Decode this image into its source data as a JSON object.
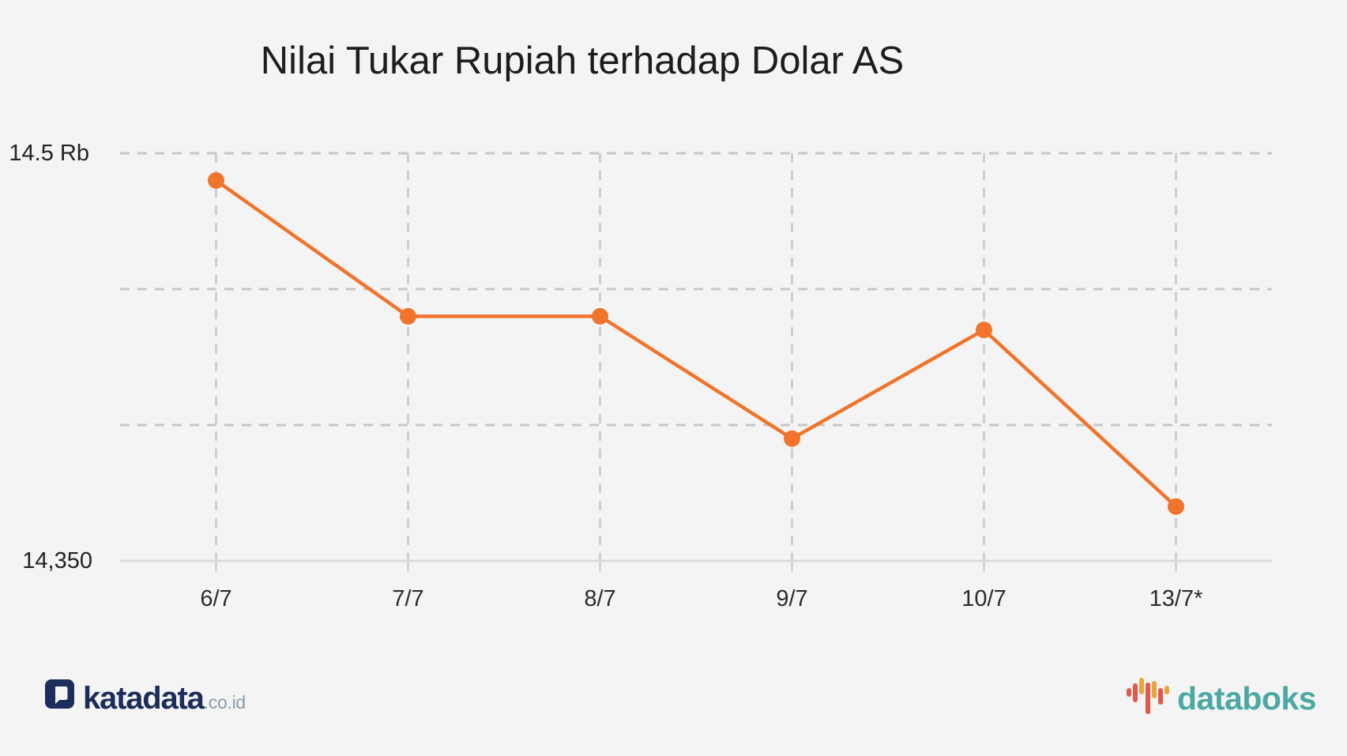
{
  "title": "Nilai Tukar Rupiah terhadap Dolar AS",
  "chart_data": {
    "type": "line",
    "title": "Nilai Tukar Rupiah terhadap Dolar AS",
    "categories": [
      "6/7",
      "7/7",
      "8/7",
      "9/7",
      "10/7",
      "13/7*"
    ],
    "series": [
      {
        "name": "Nilai Tukar Rupiah terhadap Dolar AS",
        "values": [
          14490,
          14440,
          14440,
          14395,
          14435,
          14370
        ]
      }
    ],
    "ylim": [
      14350,
      14500
    ],
    "y_axis_labels": {
      "top": "14.5 Rb",
      "bottom": "14,350"
    },
    "gridline_values": [
      14500,
      14450,
      14400
    ],
    "baseline_value": 14350,
    "grid": "dashed horizontal gridlines and dashed vertical lines at each point, solid baseline",
    "legend": "none",
    "colors": {
      "line": "#F0742B",
      "marker": "#F0742B",
      "grid_dash": "#C7C7C7",
      "baseline": "#DADADA",
      "tick": "#CFCFCF",
      "background": "#F4F4F4"
    }
  },
  "footer": {
    "katadata": {
      "icon": "katadata-speech-bubble-d-icon",
      "text": "katadata",
      "suffix": ".co.id",
      "text_color": "#1B2D5A",
      "suffix_color": "#8C9BAA"
    },
    "databoks": {
      "icon": "databoks-bar-chart-icon",
      "text": "databoks",
      "text_color": "#4BA8A3",
      "bar_colors": {
        "red": "#E2594B",
        "orange": "#EDA33C"
      }
    }
  }
}
